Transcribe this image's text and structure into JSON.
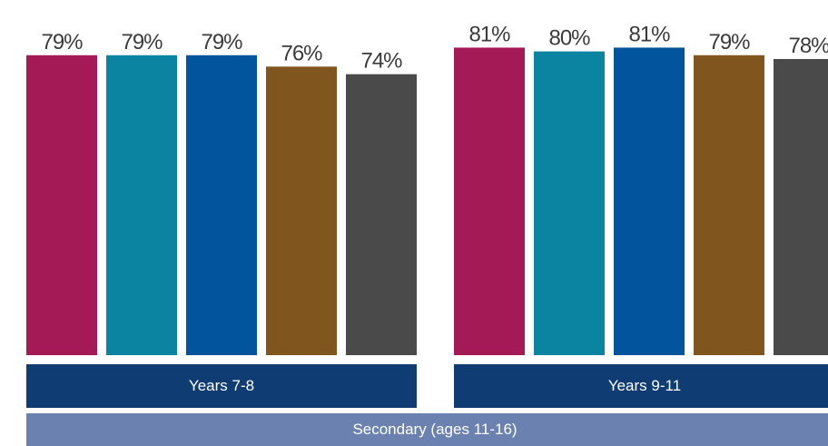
{
  "chart_data": {
    "type": "bar",
    "group_label": "Secondary (ages 11-16)",
    "groups": [
      {
        "label": "Years 7-8",
        "values": [
          79,
          79,
          79,
          76,
          74
        ],
        "value_labels": [
          "79%",
          "79%",
          "79%",
          "76%",
          "74%"
        ]
      },
      {
        "label": "Years 9-11",
        "values": [
          81,
          80,
          81,
          79,
          78
        ],
        "value_labels": [
          "81%",
          "80%",
          "81%",
          "79%",
          "78%"
        ]
      }
    ],
    "colors": [
      "#a31a57",
      "#0a84a0",
      "#02559d",
      "#80561e",
      "#4a4a4a"
    ],
    "value_unit": "%",
    "ylim": [
      0,
      100
    ],
    "grid": false,
    "legend": "none"
  },
  "colors": {
    "group_band": "#0e3c73",
    "super_band": "#6b82b0",
    "band_text": "#ffffff",
    "value_text": "#3b3b3b"
  }
}
